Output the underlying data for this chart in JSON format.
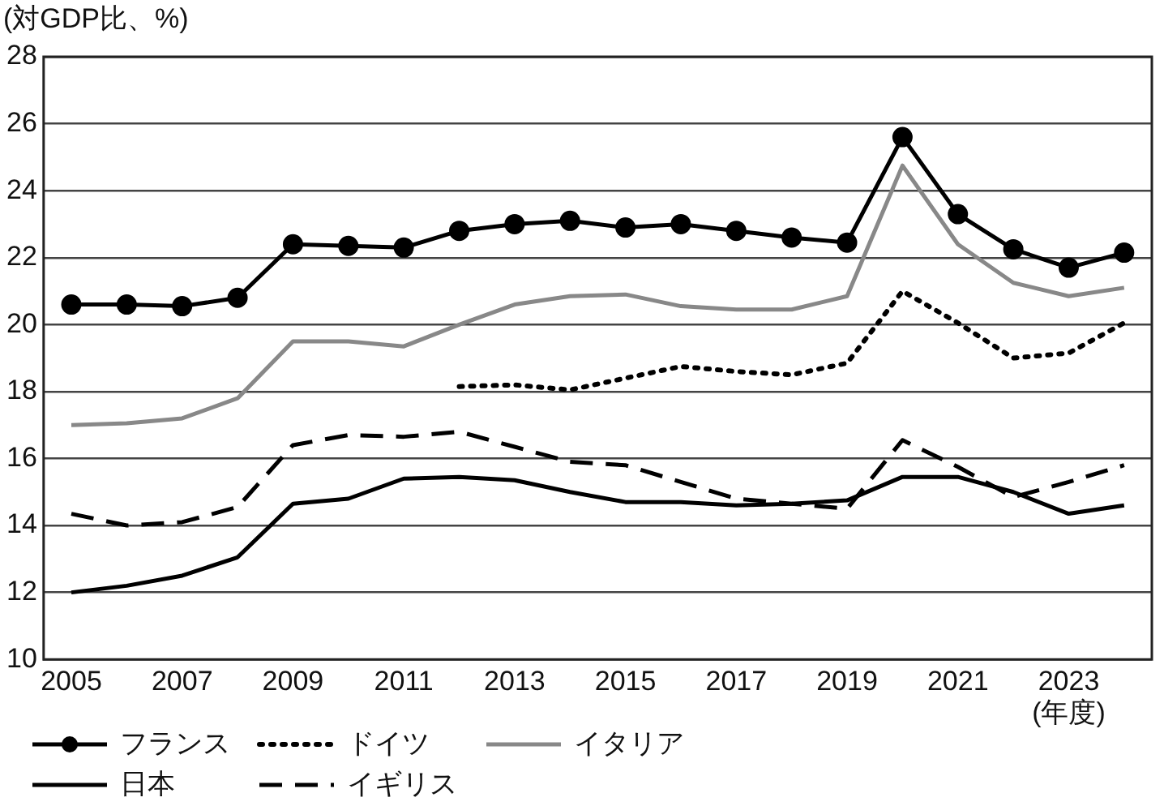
{
  "chart_data": {
    "type": "line",
    "ylabel": "(対GDP比、%)",
    "xlabel": "(年度)",
    "x": [
      2005,
      2006,
      2007,
      2008,
      2009,
      2010,
      2011,
      2012,
      2013,
      2014,
      2015,
      2016,
      2017,
      2018,
      2019,
      2020,
      2021,
      2022,
      2023,
      2024
    ],
    "xlim": [
      2004.5,
      2024.5
    ],
    "xticks": [
      2005,
      2007,
      2009,
      2011,
      2013,
      2015,
      2017,
      2019,
      2021,
      2023
    ],
    "ylim": [
      10,
      28
    ],
    "yticks": [
      10,
      12,
      14,
      16,
      18,
      20,
      22,
      24,
      26,
      28
    ],
    "grid": "y",
    "legend": "bottom",
    "series": [
      {
        "name": "フランス",
        "color": "#000000",
        "marker": "circle",
        "line_style": "solid",
        "values": [
          20.6,
          20.6,
          20.55,
          20.8,
          22.4,
          22.35,
          22.3,
          22.8,
          23.0,
          23.1,
          22.9,
          23.0,
          22.8,
          22.6,
          22.45,
          25.6,
          23.3,
          22.25,
          21.7,
          22.15
        ]
      },
      {
        "name": "ドイツ",
        "color": "#000000",
        "marker": "none",
        "line_style": "dotted",
        "values": [
          null,
          null,
          null,
          null,
          null,
          null,
          null,
          18.15,
          18.2,
          18.05,
          18.4,
          18.75,
          18.6,
          18.5,
          18.85,
          21.0,
          20.05,
          19.0,
          19.15,
          20.05
        ]
      },
      {
        "name": "イタリア",
        "color": "#888888",
        "marker": "none",
        "line_style": "solid",
        "values": [
          17.0,
          17.05,
          17.2,
          17.8,
          19.5,
          19.5,
          19.35,
          20.0,
          20.6,
          20.85,
          20.9,
          20.55,
          20.45,
          20.45,
          20.85,
          24.75,
          22.4,
          21.25,
          20.85,
          21.1
        ]
      },
      {
        "name": "日本",
        "color": "#000000",
        "marker": "none",
        "line_style": "solid",
        "values": [
          12.0,
          12.2,
          12.5,
          13.05,
          14.65,
          14.8,
          15.4,
          15.45,
          15.35,
          15.0,
          14.7,
          14.7,
          14.6,
          14.65,
          14.75,
          15.45,
          15.45,
          15.0,
          14.35,
          14.6
        ]
      },
      {
        "name": "イギリス",
        "color": "#000000",
        "marker": "none",
        "line_style": "dashed",
        "values": [
          14.35,
          14.0,
          14.1,
          14.55,
          16.4,
          16.7,
          16.65,
          16.8,
          16.35,
          15.9,
          15.8,
          15.3,
          14.8,
          14.65,
          14.5,
          16.55,
          15.75,
          14.85,
          15.3,
          15.8
        ]
      }
    ]
  }
}
